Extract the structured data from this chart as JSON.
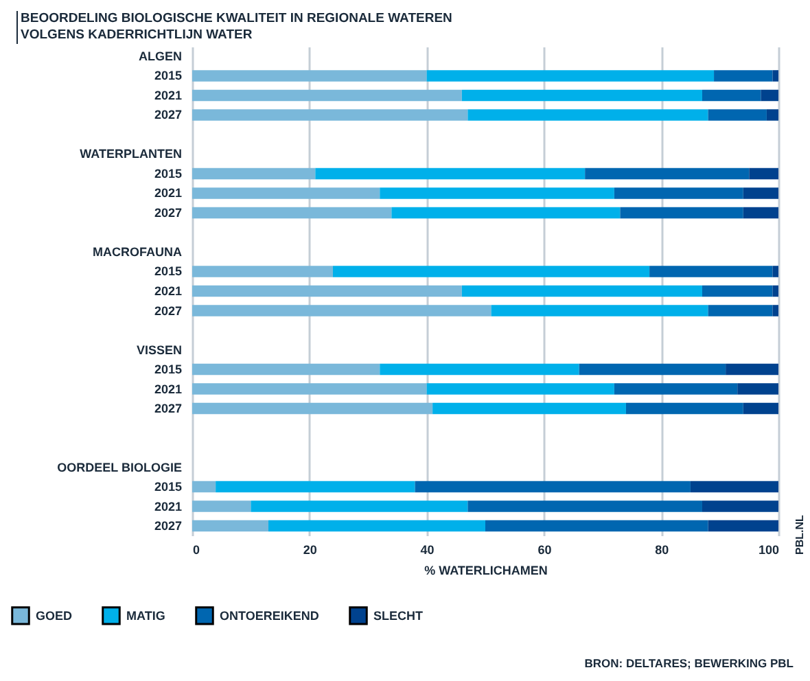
{
  "chart_data": {
    "type": "bar",
    "orientation": "horizontal",
    "stacked": true,
    "title": "BEOORDELING BIOLOGISCHE KWALITEIT IN REGIONALE WATEREN VOLGENS KADERRICHTLIJN WATER",
    "categories": [
      "ALGEN",
      "2015",
      "2021",
      "2027",
      null,
      "WATERPLANTEN",
      "2015",
      "2021",
      "2027",
      null,
      "MACROFAUNA",
      "2015",
      "2021",
      "2027",
      null,
      "VISSEN",
      "2015",
      "2021",
      "2027",
      null,
      null,
      "OORDEEL BIOLOGIE",
      "2015",
      "2021",
      "2027"
    ],
    "series": [
      {
        "name": "GOED",
        "color": "#7ab8da",
        "values": [
          null,
          40,
          46,
          47,
          null,
          null,
          21,
          32,
          34,
          null,
          null,
          24,
          46,
          51,
          null,
          null,
          32,
          40,
          41,
          null,
          null,
          null,
          4,
          10,
          13
        ]
      },
      {
        "name": "MATIG",
        "color": "#00b0ea",
        "values": [
          null,
          49,
          41,
          41,
          null,
          null,
          46,
          40,
          39,
          null,
          null,
          54,
          41,
          37,
          null,
          null,
          34,
          32,
          33,
          null,
          null,
          null,
          34,
          37,
          37
        ]
      },
      {
        "name": "ONTOEREIKEND",
        "color": "#0066b0",
        "values": [
          null,
          10,
          10,
          10,
          null,
          null,
          28,
          22,
          21,
          null,
          null,
          21,
          12,
          11,
          null,
          null,
          25,
          21,
          20,
          null,
          null,
          null,
          47,
          40,
          38
        ]
      },
      {
        "name": "SLECHT",
        "color": "#00428e",
        "values": [
          null,
          1,
          3,
          2,
          null,
          null,
          5,
          6,
          6,
          null,
          null,
          1,
          1,
          1,
          null,
          null,
          9,
          7,
          6,
          null,
          null,
          null,
          15,
          13,
          12
        ]
      }
    ],
    "xlabel": "% WATERLICHAMEN",
    "xlim": [
      0,
      100
    ],
    "xticks": [
      0,
      20,
      40,
      60,
      80,
      100
    ],
    "grid": "x",
    "legend": "bottom",
    "annotations": [
      "PBL.NL",
      "BRON: DELTARES; BEWERKING PBL"
    ]
  }
}
